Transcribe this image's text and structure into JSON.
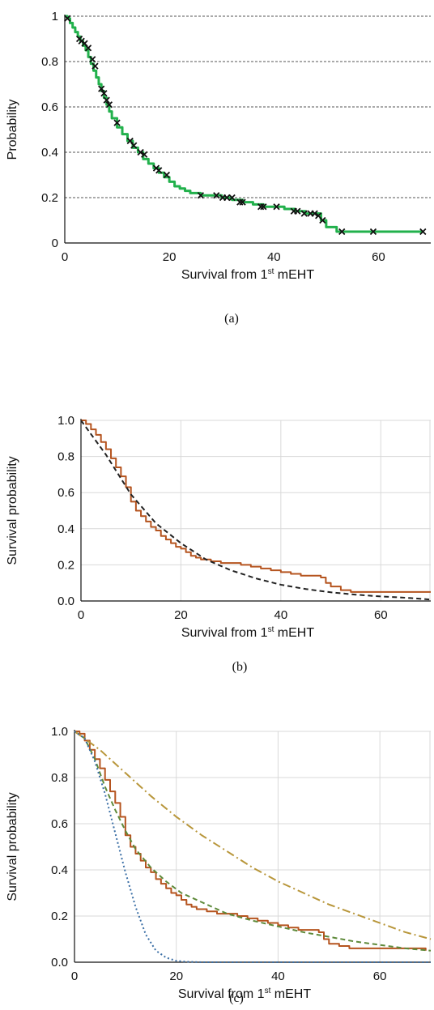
{
  "chart_data": [
    {
      "type": "line",
      "caption": "(a)",
      "xlabel": "Survival from 1",
      "xlabel_sup": "st",
      "xlabel_tail": " mEHT",
      "ylabel": "Probability",
      "xlim": [
        0,
        70
      ],
      "ylim": [
        0,
        1
      ],
      "x_ticks": [
        "0",
        "20",
        "40",
        "60"
      ],
      "y_ticks": [
        "0",
        "0.2",
        "0.4",
        "0.6",
        "0.8",
        "1"
      ],
      "grid": "horizontal-dashed",
      "series": [
        {
          "color": "#22b14c",
          "style": "step",
          "x": [
            0,
            0.5,
            1,
            1.5,
            2,
            2.5,
            3,
            3.5,
            4,
            4.5,
            5,
            5.5,
            6,
            6.5,
            7,
            7.5,
            8,
            8.5,
            9,
            10,
            11,
            12,
            13,
            14,
            15,
            16,
            17,
            18,
            19,
            20,
            21,
            22,
            23,
            24,
            26,
            28,
            30,
            32,
            34,
            36,
            38,
            40,
            42,
            44,
            46,
            48,
            49,
            50,
            52,
            54,
            58,
            62,
            66,
            68.5
          ],
          "y": [
            1.0,
            0.99,
            0.97,
            0.95,
            0.93,
            0.91,
            0.89,
            0.87,
            0.85,
            0.82,
            0.79,
            0.76,
            0.73,
            0.7,
            0.67,
            0.64,
            0.61,
            0.58,
            0.55,
            0.51,
            0.48,
            0.45,
            0.42,
            0.4,
            0.37,
            0.35,
            0.33,
            0.31,
            0.29,
            0.27,
            0.25,
            0.24,
            0.23,
            0.22,
            0.21,
            0.21,
            0.2,
            0.19,
            0.18,
            0.17,
            0.16,
            0.16,
            0.15,
            0.14,
            0.13,
            0.13,
            0.1,
            0.07,
            0.05,
            0.05,
            0.05,
            0.05,
            0.05,
            0.05
          ]
        }
      ],
      "censored": {
        "marker": "x",
        "color": "#111111",
        "x": [
          0.5,
          2.8,
          3.2,
          3.8,
          4.5,
          5.3,
          5.8,
          7.0,
          7.5,
          8.0,
          8.5,
          10.0,
          12.5,
          13.2,
          14.5,
          15.2,
          17.5,
          18.0,
          19.5,
          26.0,
          29.0,
          30.2,
          31.0,
          32.0,
          33.5,
          34.0,
          37.5,
          38.0,
          40.5,
          43.8,
          44.5,
          45.8,
          47.0,
          47.8,
          48.5,
          49.3,
          53.0,
          59.0,
          68.5
        ],
        "y": [
          0.99,
          0.9,
          0.89,
          0.88,
          0.86,
          0.81,
          0.78,
          0.68,
          0.66,
          0.63,
          0.61,
          0.53,
          0.45,
          0.43,
          0.4,
          0.39,
          0.33,
          0.32,
          0.3,
          0.21,
          0.21,
          0.2,
          0.2,
          0.2,
          0.18,
          0.18,
          0.16,
          0.16,
          0.16,
          0.14,
          0.14,
          0.13,
          0.13,
          0.13,
          0.12,
          0.1,
          0.05,
          0.05,
          0.05
        ]
      }
    },
    {
      "type": "line",
      "caption": "(b)",
      "xlabel": "Survival from 1",
      "xlabel_sup": "st",
      "xlabel_tail": " mEHT",
      "ylabel": "Survival probability",
      "xlim": [
        0,
        70
      ],
      "ylim": [
        0,
        1
      ],
      "x_ticks": [
        "0",
        "20",
        "40",
        "60"
      ],
      "y_ticks": [
        "0.0",
        "0.2",
        "0.4",
        "0.6",
        "0.8",
        "1.0"
      ],
      "grid": "both",
      "series": [
        {
          "color": "#b5541f",
          "style": "step",
          "x": [
            0,
            1,
            2,
            3,
            4,
            5,
            6,
            7,
            8,
            9,
            10,
            11,
            12,
            13,
            14,
            15,
            16,
            17,
            18,
            19,
            20,
            21,
            22,
            23,
            24,
            26,
            28,
            30,
            32,
            34,
            36,
            38,
            40,
            42,
            44,
            46,
            48,
            49,
            50,
            52,
            54,
            58,
            62,
            66,
            70
          ],
          "y": [
            1.0,
            0.98,
            0.95,
            0.92,
            0.88,
            0.84,
            0.79,
            0.74,
            0.69,
            0.63,
            0.55,
            0.5,
            0.47,
            0.44,
            0.41,
            0.39,
            0.36,
            0.34,
            0.32,
            0.3,
            0.29,
            0.27,
            0.25,
            0.24,
            0.23,
            0.22,
            0.21,
            0.21,
            0.2,
            0.19,
            0.18,
            0.17,
            0.16,
            0.15,
            0.14,
            0.14,
            0.13,
            0.1,
            0.08,
            0.06,
            0.05,
            0.05,
            0.05,
            0.05,
            0.05
          ]
        },
        {
          "color": "#222222",
          "style": "dashed",
          "x": [
            0,
            5,
            10,
            15,
            20,
            25,
            30,
            35,
            40,
            45,
            50,
            55,
            60,
            65,
            70
          ],
          "y": [
            1.0,
            0.81,
            0.59,
            0.43,
            0.32,
            0.23,
            0.17,
            0.125,
            0.09,
            0.066,
            0.048,
            0.035,
            0.025,
            0.018,
            0.008
          ]
        }
      ]
    },
    {
      "type": "line",
      "caption": "(c)",
      "xlabel": "Survival from 1",
      "xlabel_sup": "st",
      "xlabel_tail": " mEHT",
      "ylabel": "Survival probability",
      "xlim": [
        0,
        70
      ],
      "ylim": [
        0,
        1
      ],
      "x_ticks": [
        "0",
        "20",
        "40",
        "60"
      ],
      "y_ticks": [
        "0.0",
        "0.2",
        "0.4",
        "0.6",
        "0.8",
        "1.0"
      ],
      "grid": "both",
      "series": [
        {
          "color": "#b5541f",
          "style": "step",
          "x": [
            0,
            1,
            2,
            3,
            4,
            5,
            6,
            7,
            8,
            9,
            10,
            11,
            12,
            13,
            14,
            15,
            16,
            17,
            18,
            19,
            20,
            21,
            22,
            23,
            24,
            26,
            28,
            30,
            32,
            34,
            36,
            38,
            40,
            42,
            44,
            46,
            48,
            49,
            50,
            52,
            54,
            58,
            62,
            66,
            69
          ],
          "y": [
            1.0,
            0.99,
            0.96,
            0.92,
            0.88,
            0.84,
            0.79,
            0.74,
            0.69,
            0.63,
            0.55,
            0.5,
            0.47,
            0.44,
            0.41,
            0.39,
            0.36,
            0.34,
            0.32,
            0.3,
            0.29,
            0.27,
            0.25,
            0.24,
            0.23,
            0.22,
            0.21,
            0.21,
            0.2,
            0.19,
            0.18,
            0.17,
            0.16,
            0.15,
            0.14,
            0.14,
            0.13,
            0.1,
            0.08,
            0.07,
            0.06,
            0.06,
            0.06,
            0.06,
            0.05
          ]
        },
        {
          "color": "#5e8a3a",
          "style": "dashed",
          "x": [
            0,
            2,
            4,
            6,
            8,
            10,
            12,
            15,
            18,
            21,
            25,
            30,
            35,
            40,
            45,
            50,
            55,
            60,
            65,
            70
          ],
          "y": [
            1.0,
            0.97,
            0.88,
            0.76,
            0.66,
            0.57,
            0.49,
            0.41,
            0.35,
            0.3,
            0.26,
            0.21,
            0.18,
            0.155,
            0.13,
            0.11,
            0.09,
            0.075,
            0.06,
            0.05
          ]
        },
        {
          "color": "#b8963a",
          "style": "dashdot",
          "x": [
            0,
            5,
            10,
            15,
            20,
            25,
            30,
            35,
            40,
            45,
            50,
            55,
            60,
            65,
            70
          ],
          "y": [
            1.0,
            0.92,
            0.82,
            0.72,
            0.63,
            0.55,
            0.48,
            0.41,
            0.35,
            0.3,
            0.25,
            0.21,
            0.17,
            0.13,
            0.1
          ]
        },
        {
          "color": "#3a6ea5",
          "style": "dotted",
          "x": [
            0,
            2,
            4,
            6,
            8,
            10,
            12,
            14,
            16,
            18,
            20,
            22,
            25,
            30,
            40,
            50,
            60,
            70
          ],
          "y": [
            1.0,
            0.97,
            0.87,
            0.73,
            0.56,
            0.39,
            0.24,
            0.12,
            0.05,
            0.02,
            0.006,
            0.002,
            0.0,
            0.0,
            0.0,
            0.0,
            0.0,
            0.0
          ]
        }
      ]
    }
  ]
}
